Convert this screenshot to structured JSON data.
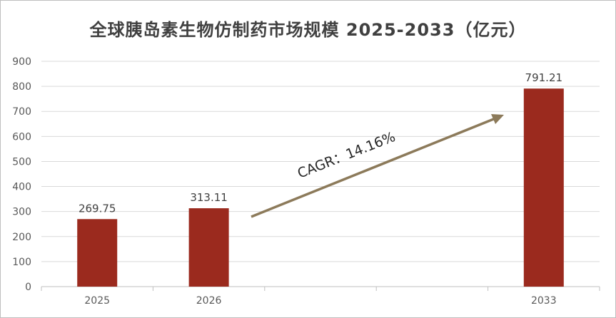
{
  "title": "全球胰岛素生物仿制药市场规模 2025-2033（亿元）",
  "annotation": "CAGR：14.16%",
  "colors": {
    "bar": "#9b2a1e",
    "arrow": "#8c7a5a",
    "grid": "#d9d9d9",
    "axis": "#bfbfbf"
  },
  "chart_data": {
    "type": "bar",
    "title": "全球胰岛素生物仿制药市场规模 2025-2033（亿元）",
    "categories": [
      "2025",
      "2026",
      "",
      "",
      "2033"
    ],
    "values": [
      269.75,
      313.11,
      null,
      null,
      791.21
    ],
    "data_labels": [
      "269.75",
      "313.11",
      "",
      "",
      "791.21"
    ],
    "ylim": [
      0,
      900
    ],
    "yticks": [
      0,
      100,
      200,
      300,
      400,
      500,
      600,
      700,
      800,
      900
    ],
    "grid": true,
    "xlabel": "",
    "ylabel": ""
  }
}
